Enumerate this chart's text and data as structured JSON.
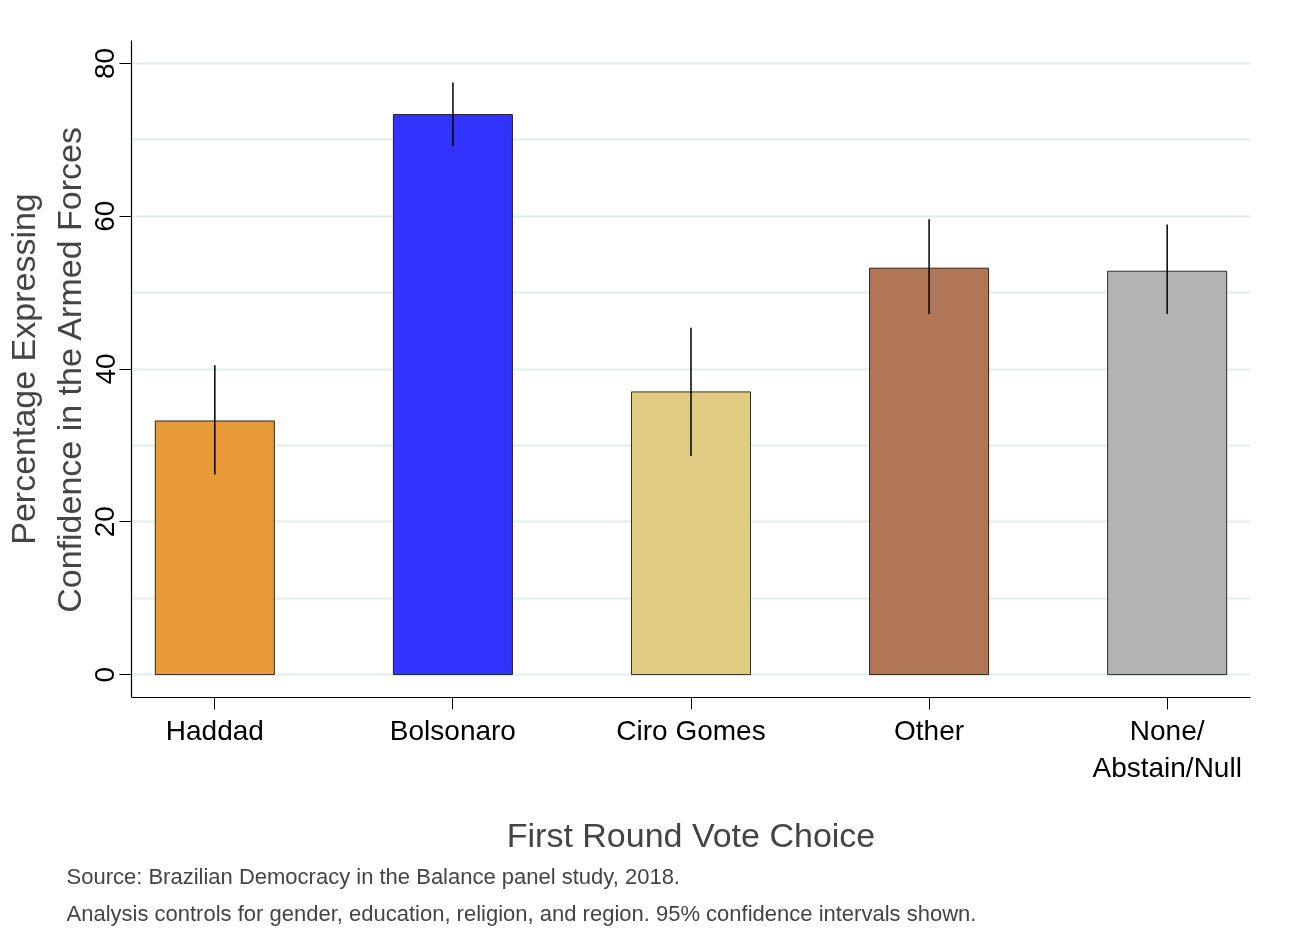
{
  "chart_data": {
    "type": "bar",
    "xlabel": "First Round Vote Choice",
    "ylabel": "Percentage Expressing\nConfidence in the Armed Forces",
    "categories": [
      "Haddad",
      "Bolsonaro",
      "Ciro Gomes",
      "Other",
      "None/\nAbstain/Null"
    ],
    "values": [
      33.2,
      73.3,
      37.0,
      53.2,
      52.8
    ],
    "colors": [
      "#e8993a",
      "#3333ff",
      "#e1cc84",
      "#b07656",
      "#b3b3b3"
    ],
    "errors": [
      [
        26.2,
        40.5
      ],
      [
        69.2,
        77.5
      ],
      [
        28.6,
        45.4
      ],
      [
        47.2,
        59.6
      ],
      [
        47.2,
        58.9
      ]
    ],
    "ylim": [
      -3,
      83
    ],
    "yticks": [
      0,
      20,
      40,
      60,
      80
    ],
    "grid": "y",
    "annotations": [
      "Source: Brazilian Democracy in the Balance panel study, 2018.",
      "Analysis controls for gender, education, religion, and region. 95% confidence intervals shown."
    ]
  }
}
